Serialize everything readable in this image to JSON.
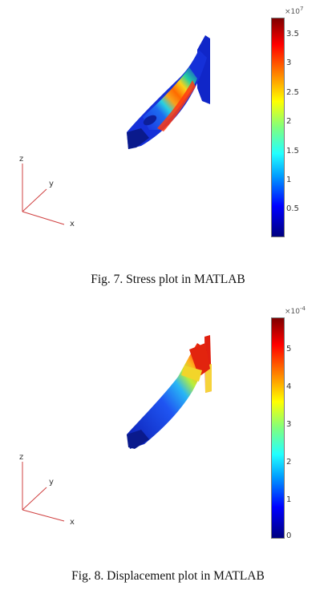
{
  "figures": [
    {
      "caption": "Fig. 7. Stress plot in MATLAB",
      "colorbar": {
        "exponent_base": "×10",
        "exponent_power": "7",
        "ticks": [
          "3.5",
          "3",
          "2.5",
          "2",
          "1.5",
          "1",
          "0.5"
        ]
      },
      "axes": {
        "x": "x",
        "y": "y",
        "z": "z"
      }
    },
    {
      "caption": "Fig. 8. Displacement plot in MATLAB",
      "colorbar": {
        "exponent_base": "×10",
        "exponent_power": "-4",
        "ticks": [
          "5",
          "4",
          "3",
          "2",
          "1",
          "0"
        ]
      },
      "axes": {
        "x": "x",
        "y": "y",
        "z": "z"
      }
    }
  ]
}
